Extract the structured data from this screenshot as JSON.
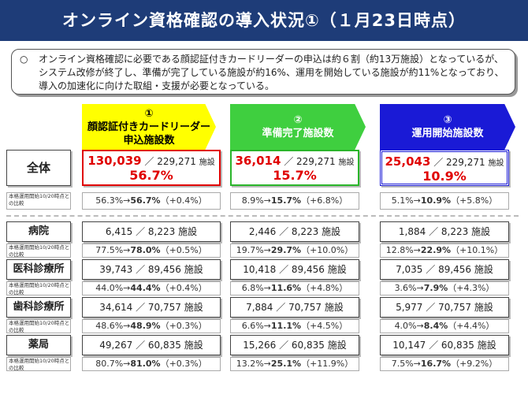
{
  "title": "オンライン資格確認の導入状況①（１月23日時点）",
  "intro": {
    "mark": "○",
    "text": "オンライン資格確認に必要である顔認証付きカードリーダーの申込は約６割（約13万施設）となっているが、システム改修が終了し、準備が完了している施設が約16%、運用を開始している施設が約11%となっており、導入の加速化に向けた取組・支援が必要となっている。"
  },
  "columns": [
    {
      "num": "①",
      "line1": "顔認証付きカードリーダー",
      "line2": "申込施設数",
      "color": "#ffff00"
    },
    {
      "num": "②",
      "line1": "準備完了施設数",
      "line2": "",
      "color": "#3fcf3f"
    },
    {
      "num": "③",
      "line1": "運用開始施設数",
      "line2": "",
      "color": "#1a1ad6"
    }
  ],
  "compare_label": "本格運用開始10/20時点との比較",
  "unit": "施設",
  "total": {
    "label": "全体",
    "cells": [
      {
        "num": "130,039",
        "den": "229,271",
        "pct": "56.7%"
      },
      {
        "num": "36,014",
        "den": "229,271",
        "pct": "15.7%"
      },
      {
        "num": "25,043",
        "den": "229,271",
        "pct": "10.9%"
      }
    ],
    "compare": [
      {
        "from": "56.3%→",
        "to": "56.7%",
        "delta": "（+0.4%）"
      },
      {
        "from": "8.9%→",
        "to": "15.7%",
        "delta": "（+6.8%）"
      },
      {
        "from": "5.1%→",
        "to": "10.9%",
        "delta": "（+5.8%）"
      }
    ]
  },
  "rows": [
    {
      "label": "病院",
      "cells": [
        {
          "num": "6,415",
          "den": "8,223"
        },
        {
          "num": "2,446",
          "den": "8,223"
        },
        {
          "num": "1,884",
          "den": "8,223"
        }
      ],
      "compare": [
        {
          "from": "77.5%→",
          "to": "78.0%",
          "delta": "（+0.5%）"
        },
        {
          "from": "19.7%→",
          "to": "29.7%",
          "delta": "（+10.0%）"
        },
        {
          "from": "12.8%→",
          "to": "22.9%",
          "delta": "（+10.1%）"
        }
      ]
    },
    {
      "label": "医科診療所",
      "cells": [
        {
          "num": "39,743",
          "den": "89,456"
        },
        {
          "num": "10,418",
          "den": "89,456"
        },
        {
          "num": "7,035",
          "den": "89,456"
        }
      ],
      "compare": [
        {
          "from": "44.0%→",
          "to": "44.4%",
          "delta": "（+0.4%）"
        },
        {
          "from": "6.8%→",
          "to": "11.6%",
          "delta": "（+4.8%）"
        },
        {
          "from": "3.6%→",
          "to": "7.9%",
          "delta": "（+4.3%）"
        }
      ]
    },
    {
      "label": "歯科診療所",
      "cells": [
        {
          "num": "34,614",
          "den": "70,757"
        },
        {
          "num": "7,884",
          "den": "70,757"
        },
        {
          "num": "5,977",
          "den": "70,757"
        }
      ],
      "compare": [
        {
          "from": "48.6%→",
          "to": "48.9%",
          "delta": "（+0.3%）"
        },
        {
          "from": "6.6%→",
          "to": "11.1%",
          "delta": "（+4.5%）"
        },
        {
          "from": "4.0%→",
          "to": "8.4%",
          "delta": "（+4.4%）"
        }
      ]
    },
    {
      "label": "薬局",
      "cells": [
        {
          "num": "49,267",
          "den": "60,835"
        },
        {
          "num": "15,266",
          "den": "60,835"
        },
        {
          "num": "10,147",
          "den": "60,835"
        }
      ],
      "compare": [
        {
          "from": "80.7%→",
          "to": "81.0%",
          "delta": "（+0.3%）"
        },
        {
          "from": "13.2%→",
          "to": "25.1%",
          "delta": "（+11.9%）"
        },
        {
          "from": "7.5%→",
          "to": "16.7%",
          "delta": "（+9.2%）"
        }
      ]
    }
  ]
}
